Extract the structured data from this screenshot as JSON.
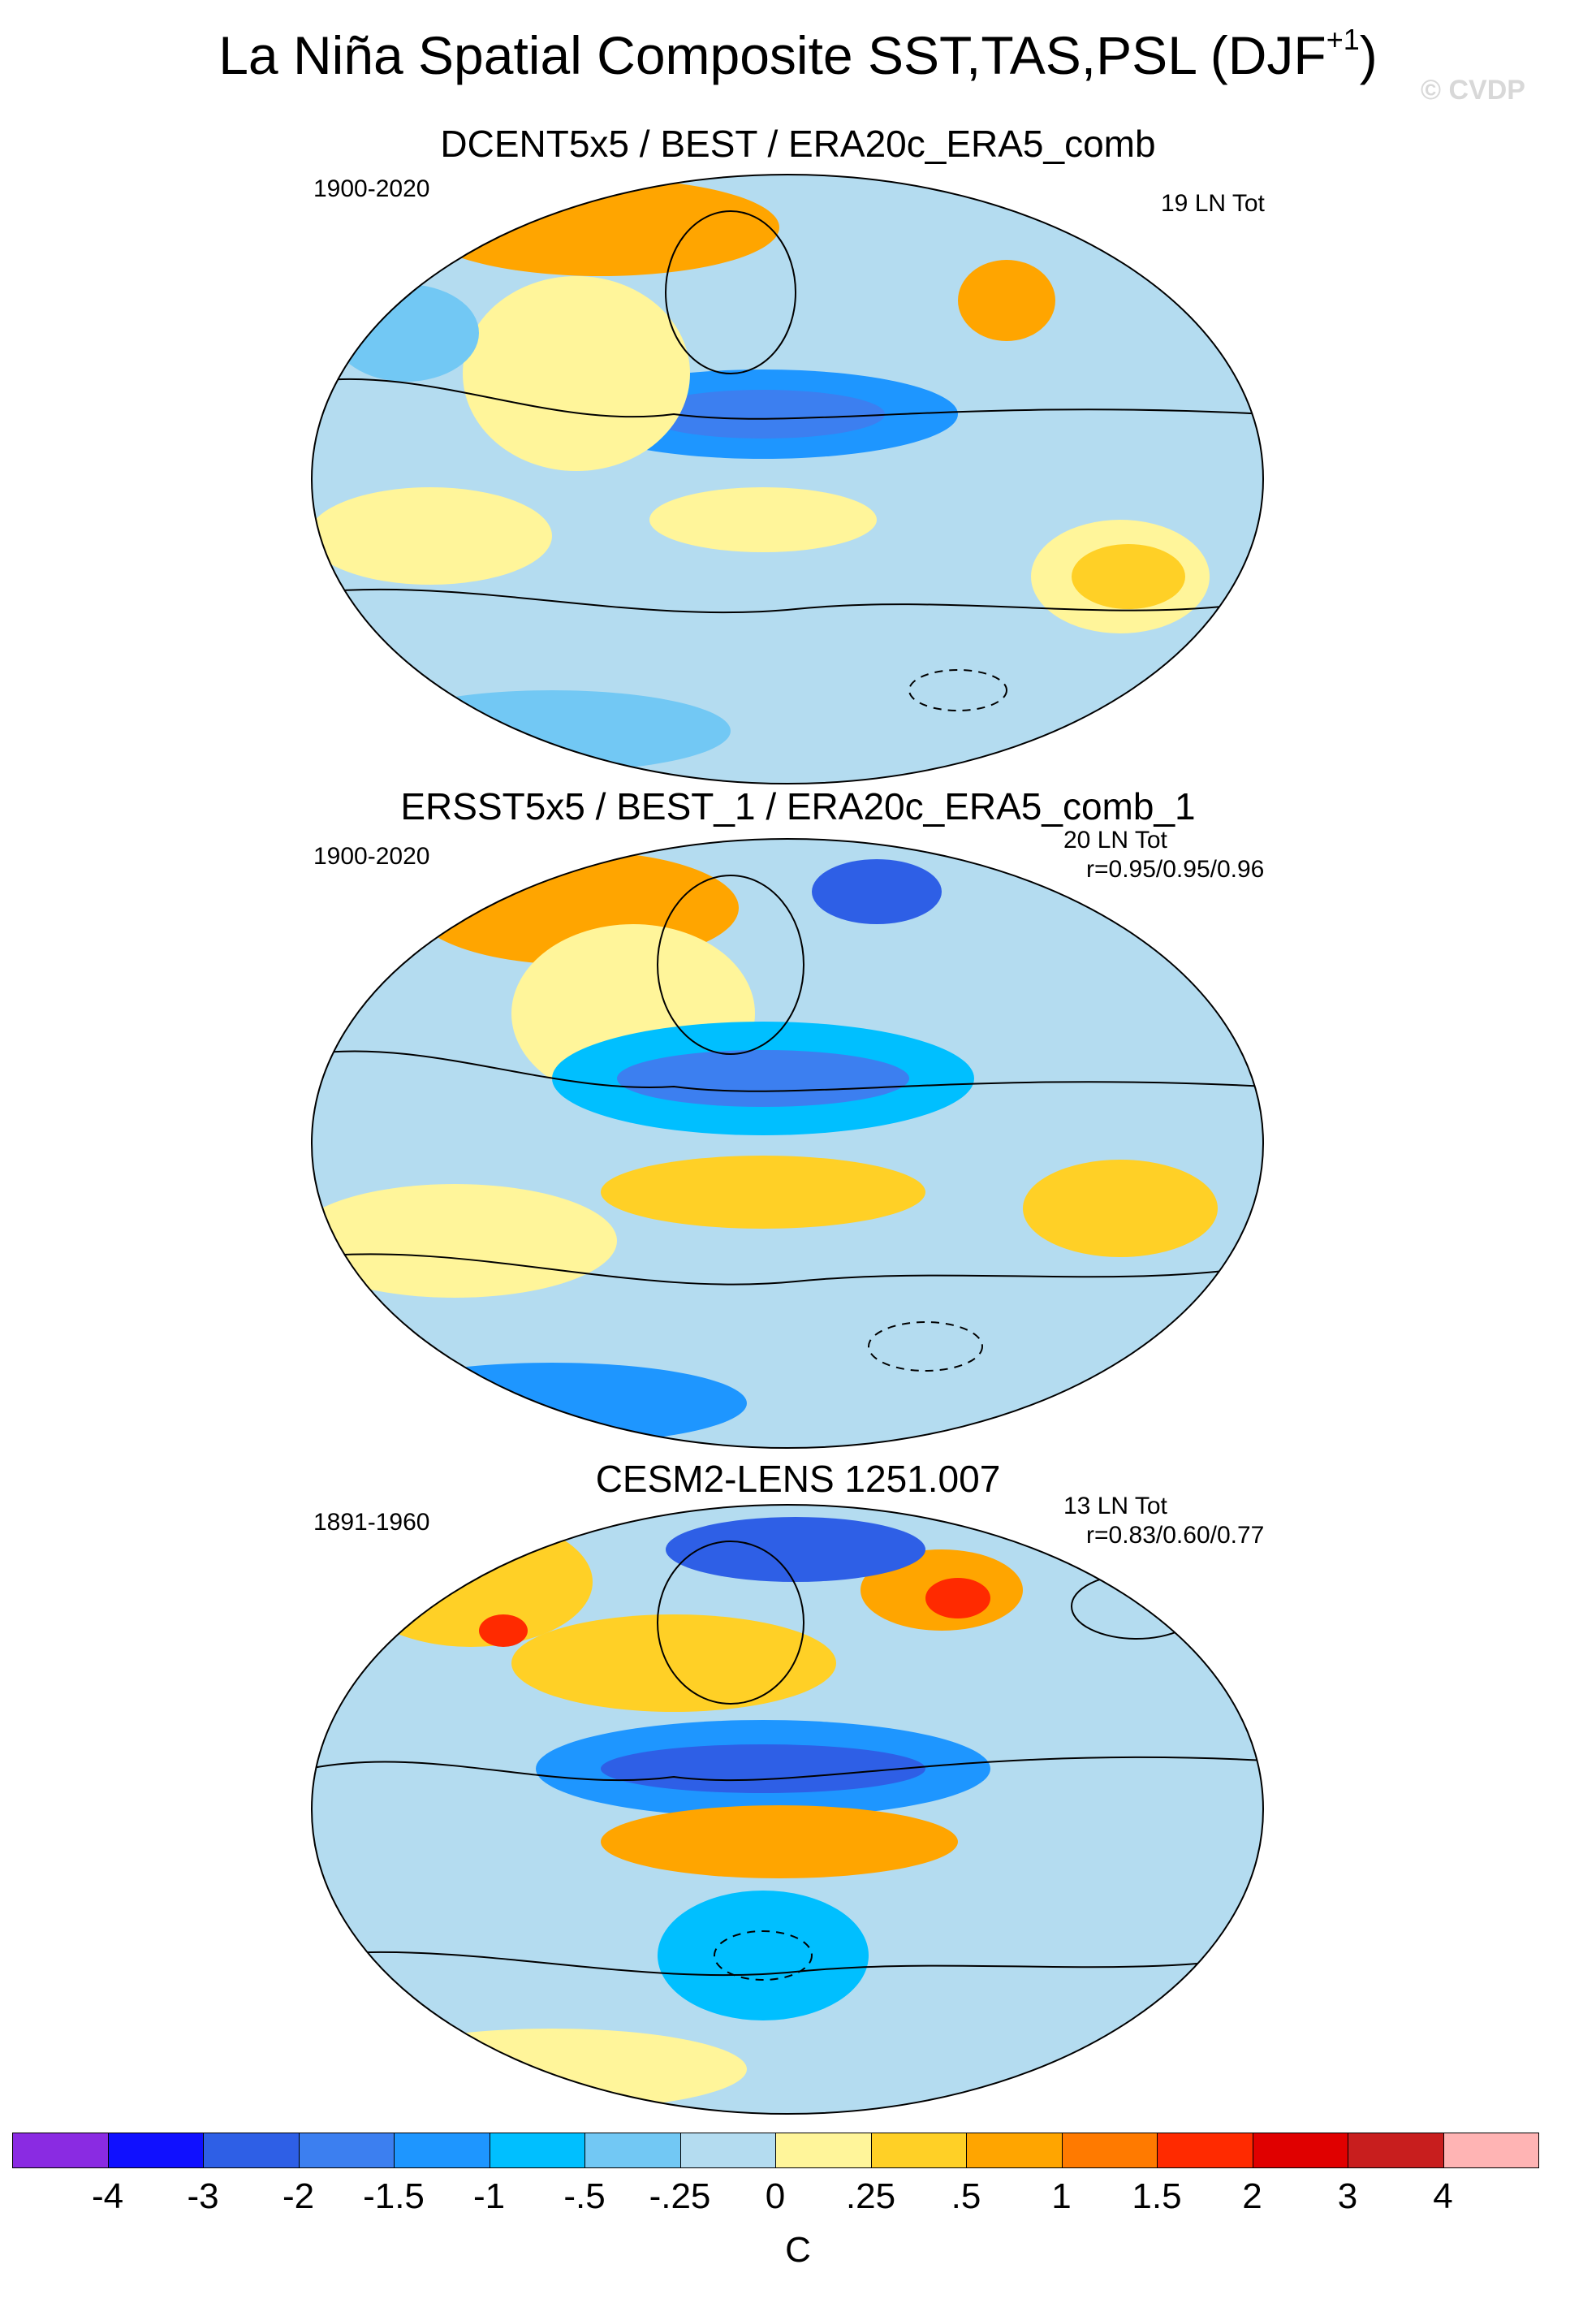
{
  "figure": {
    "title": "La Niña Spatial Composite SST,TAS,PSL (DJF",
    "title_sup": "+1",
    "title_close": ")",
    "watermark": "© CVDP"
  },
  "panels": [
    {
      "title": "DCENT5x5 / BEST / ERA20c_ERA5_comb",
      "period": "1900-2020",
      "count": "19 LN Tot",
      "correlation": ""
    },
    {
      "title": "ERSST5x5 / BEST_1 / ERA20c_ERA5_comb_1",
      "period": "1900-2020",
      "count": "20 LN Tot",
      "correlation": "r=0.95/0.95/0.96"
    },
    {
      "title": "CESM2-LENS 1251.007",
      "period": "1891-1960",
      "count": "13 LN Tot",
      "correlation": "r=0.83/0.60/0.77"
    }
  ],
  "colorbar": {
    "units": "C",
    "labels": [
      "-4",
      "-3",
      "-2",
      "-1.5",
      "-1",
      "-.5",
      "-.25",
      "0",
      ".25",
      ".5",
      "1",
      "1.5",
      "2",
      "3",
      "4"
    ],
    "colors": [
      "#8a2be2",
      "#1010ff",
      "#2e5fe6",
      "#3c7ff0",
      "#1e96ff",
      "#00bfff",
      "#72c8f4",
      "#b4dcf0",
      "#fff59a",
      "#ffd026",
      "#ffa500",
      "#ff7a00",
      "#ff2a00",
      "#e00000",
      "#c81e1e",
      "#ffb4b4"
    ]
  }
}
